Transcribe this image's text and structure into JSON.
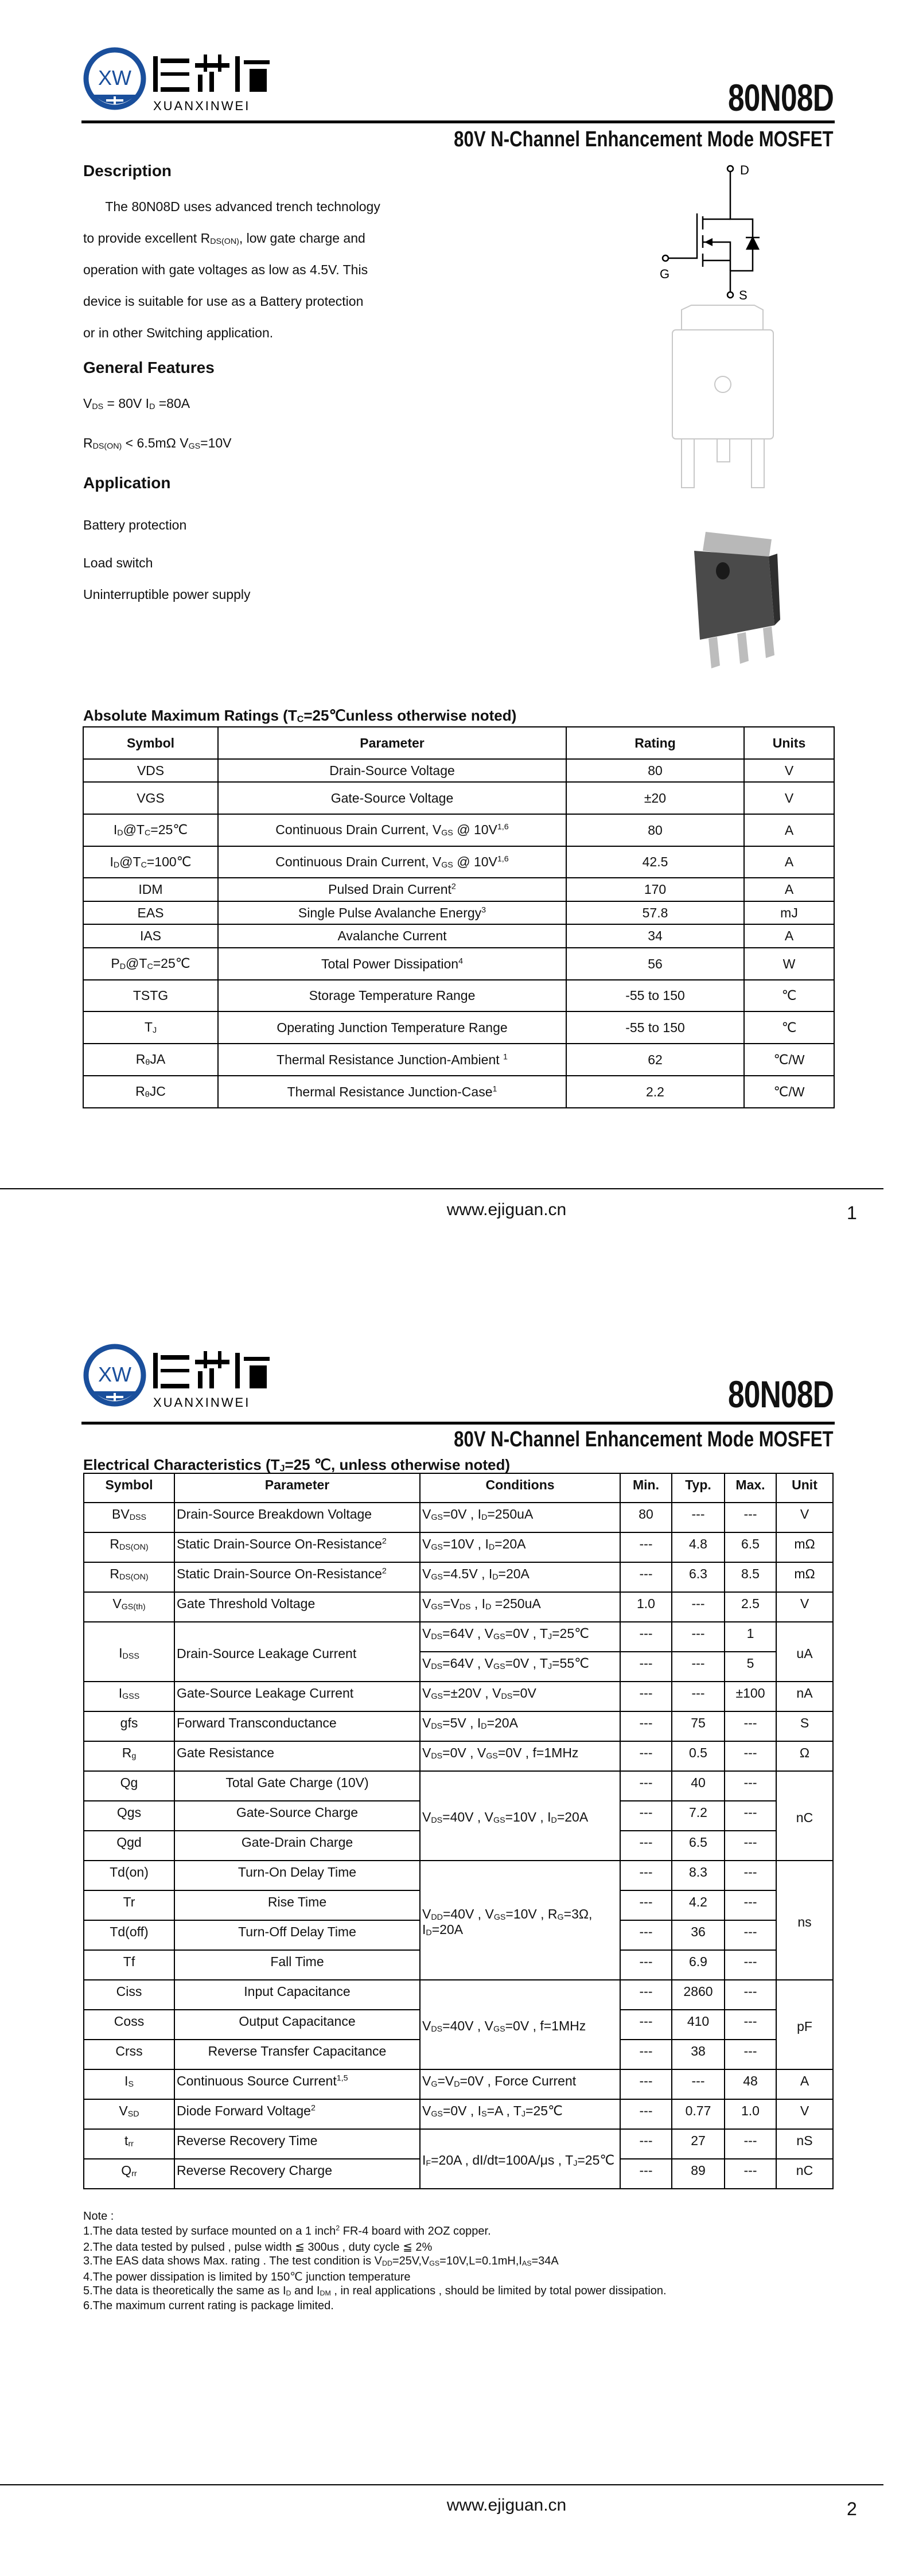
{
  "brand": {
    "logo_mark": "XW",
    "logo_cn": "烜芯微",
    "logo_en": "XUANXINWEI",
    "color": "#1a4f9c"
  },
  "part_number": "80N08D",
  "subtitle": "80V N-Channel Enhancement Mode MOSFET",
  "description": {
    "heading": "Description",
    "lines": [
      "   The  80N08D uses advanced trench technology",
      "to provide excellent R_{DS(ON)}, low gate charge and",
      "operation with gate voltages as low as 4.5V. This",
      "device is suitable for use as a Battery protection",
      "or in other Switching application."
    ]
  },
  "features": {
    "heading": "General Features",
    "lines": [
      "V_{DS} = 80V  I_{D} =80A",
      "R_{DS(ON)} < 6.5mΩ V_{GS}=10V"
    ]
  },
  "application": {
    "heading": "Application",
    "items": [
      "Battery protection",
      "Load switch",
      "Uninterruptible power supply"
    ]
  },
  "symbol_labels": {
    "drain": "D",
    "gate": "G",
    "source": "S"
  },
  "abs_max": {
    "title": "Absolute Maximum Ratings (T_{C}=25℃unless otherwise noted)",
    "headers": [
      "Symbol",
      "Parameter",
      "Rating",
      "Units"
    ],
    "rows": [
      [
        "VDS",
        "Drain-Source Voltage",
        "80",
        "V"
      ],
      [
        "VGS",
        "Gate-Source Voltage",
        "±20",
        "V"
      ],
      [
        "I_{D}@T_{C}=25℃",
        "Continuous Drain Current, V_{GS} @ 10V^{1,6}",
        "80",
        "A"
      ],
      [
        "I_{D}@T_{C}=100℃",
        "Continuous Drain Current, V_{GS} @ 10V^{1,6}",
        "42.5",
        "A"
      ],
      [
        "IDM",
        "Pulsed Drain Current^{2}",
        "170",
        "A"
      ],
      [
        "EAS",
        "Single Pulse Avalanche Energy^{3}",
        "57.8",
        "mJ"
      ],
      [
        "IAS",
        "Avalanche Current",
        "34",
        "A"
      ],
      [
        "P_{D}@T_{C}=25℃",
        "Total Power Dissipation^{4}",
        "56",
        "W"
      ],
      [
        "TSTG",
        "Storage Temperature Range",
        "-55 to 150",
        "℃"
      ],
      [
        "T_{J}",
        "Operating Junction Temperature Range",
        "-55 to 150",
        "℃"
      ],
      [
        "R_{θ}JA",
        "Thermal Resistance Junction-Ambient ^{1}",
        "62",
        "℃/W"
      ],
      [
        "R_{θ}JC",
        "Thermal Resistance Junction-Case^{1}",
        "2.2",
        "℃/W"
      ]
    ]
  },
  "elec": {
    "title": "Electrical Characteristics (T_{J}=25 ℃, unless otherwise noted)",
    "headers": [
      "Symbol",
      "Parameter",
      "Conditions",
      "Min.",
      "Typ.",
      "Max.",
      "Unit"
    ],
    "rows": [
      {
        "sym": "BV_{DSS}",
        "param": "Drain-Source Breakdown Voltage",
        "cond": "V_{GS}=0V , I_{D}=250uA",
        "min": "80",
        "typ": "---",
        "max": "---",
        "unit": "V"
      },
      {
        "sym": "R_{DS(ON)}",
        "param": "Static Drain-Source On-Resistance^{2}",
        "cond": "V_{GS}=10V , I_{D}=20A",
        "min": "---",
        "typ": "4.8",
        "max": "6.5",
        "unit": "mΩ"
      },
      {
        "sym": "R_{DS(ON)}",
        "param": "Static Drain-Source On-Resistance^{2}",
        "cond": "V_{GS}=4.5V , I_{D}=20A",
        "min": "---",
        "typ": "6.3",
        "max": "8.5",
        "unit": "mΩ"
      },
      {
        "sym": "V_{GS(th)}",
        "param": "Gate Threshold Voltage",
        "cond": "V_{GS}=V_{DS} , I_{D} =250uA",
        "min": "1.0",
        "typ": "---",
        "max": "2.5",
        "unit": "V"
      },
      {
        "sym": "I_{DSS}",
        "param": "Drain-Source Leakage Current",
        "cond": "V_{DS}=64V , V_{GS}=0V , T_{J}=25℃",
        "min": "---",
        "typ": "---",
        "max": "1",
        "unit": "uA"
      },
      {
        "cond": "V_{DS}=64V , V_{GS}=0V , T_{J}=55℃",
        "min": "---",
        "typ": "---",
        "max": "5"
      },
      {
        "sym": "I_{GSS}",
        "param": "Gate-Source Leakage Current",
        "cond": "V_{GS}=±20V , V_{DS}=0V",
        "min": "---",
        "typ": "---",
        "max": "±100",
        "unit": "nA"
      },
      {
        "sym": "gfs",
        "param": "Forward Transconductance",
        "cond": "V_{DS}=5V , I_{D}=20A",
        "min": "---",
        "typ": "75",
        "max": "---",
        "unit": "S"
      },
      {
        "sym": "R_{g}",
        "param": "Gate Resistance",
        "cond": "V_{DS}=0V , V_{GS}=0V , f=1MHz",
        "min": "---",
        "typ": "0.5",
        "max": "---",
        "unit": "Ω"
      },
      {
        "sym": "Qg",
        "param": "Total Gate Charge (10V)",
        "cond": "V_{DS}=40V , V_{GS}=10V , I_{D}=20A",
        "min": "---",
        "typ": "40",
        "max": "---",
        "unit": "nC"
      },
      {
        "sym": "Qgs",
        "param": "Gate-Source Charge",
        "min": "---",
        "typ": "7.2",
        "max": "---"
      },
      {
        "sym": "Qgd",
        "param": "Gate-Drain Charge",
        "min": "---",
        "typ": "6.5",
        "max": "---"
      },
      {
        "sym": "Td(on)",
        "param": "Turn-On Delay Time",
        "cond": "V_{DD}=40V , V_{GS}=10V , R_{G}=3Ω, I_{D}=20A",
        "min": "---",
        "typ": "8.3",
        "max": "---",
        "unit": "ns"
      },
      {
        "sym": "Tr",
        "param": "Rise Time",
        "min": "---",
        "typ": "4.2",
        "max": "---"
      },
      {
        "sym": "Td(off)",
        "param": "Turn-Off Delay Time",
        "min": "---",
        "typ": "36",
        "max": "---"
      },
      {
        "sym": "Tf",
        "param": "Fall Time",
        "min": "---",
        "typ": "6.9",
        "max": "---"
      },
      {
        "sym": "Ciss",
        "param": "Input Capacitance",
        "cond": "V_{DS}=40V , V_{GS}=0V , f=1MHz",
        "min": "---",
        "typ": "2860",
        "max": "---",
        "unit": "pF"
      },
      {
        "sym": "Coss",
        "param": "Output Capacitance",
        "min": "---",
        "typ": "410",
        "max": "---"
      },
      {
        "sym": "Crss",
        "param": "Reverse Transfer Capacitance",
        "min": "---",
        "typ": "38",
        "max": "---"
      },
      {
        "sym": "I_{S}",
        "param": "Continuous Source Current^{1,5}",
        "cond": "V_{G}=V_{D}=0V , Force Current",
        "min": "---",
        "typ": "---",
        "max": "48",
        "unit": "A"
      },
      {
        "sym": "V_{SD}",
        "param": "Diode Forward Voltage^{2}",
        "cond": "V_{GS}=0V , I_{S}=A , T_{J}=25℃",
        "min": "---",
        "typ": "0.77",
        "max": "1.0",
        "unit": "V"
      },
      {
        "sym": "t_{rr}",
        "param": "Reverse Recovery Time",
        "cond": "I_{F}=20A   ,   dI/dt=100A/μs   , T_{J}=25℃",
        "min": "---",
        "typ": "27",
        "max": "---",
        "unit": "nS"
      },
      {
        "sym": "Q_{rr}",
        "param": "Reverse Recovery Charge",
        "min": "---",
        "typ": "89",
        "max": "---",
        "unit": "nC"
      }
    ]
  },
  "notes": {
    "heading": "Note :",
    "items": [
      "1.The data tested by surface mounted on a 1 inch^{2} FR-4 board with 2OZ copper.",
      "2.The data tested by pulsed , pulse width ≦ 300us , duty cycle ≦ 2%",
      "3.The EAS data shows Max. rating . The test condition is V_{DD}=25V,V_{GS}=10V,L=0.1mH,I_{AS}=34A",
      "4.The power dissipation is limited by 150℃ junction temperature",
      "5.The data is theoretically the same as I_{D} and I_{DM} , in real applications , should be limited by total power dissipation.",
      "6.The maximum current rating is package limited."
    ]
  },
  "footer": {
    "website": "www.ejiguan.cn",
    "pages": [
      "1",
      "2"
    ]
  }
}
